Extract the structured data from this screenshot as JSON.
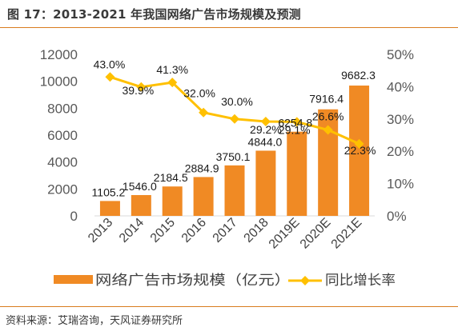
{
  "figure": {
    "title": "图 17：2013-2021 年我国网络广告市场规模及预测",
    "source": "资料来源：艾瑞咨询，天风证券研究所"
  },
  "chart_data": {
    "type": "bar",
    "categories": [
      "2013",
      "2014",
      "2015",
      "2016",
      "2017",
      "2018",
      "2019E",
      "2020E",
      "2021E"
    ],
    "series": [
      {
        "name": "网络广告市场规模（亿元）",
        "type": "bar",
        "axis": "left",
        "color": "#f08a24",
        "values": [
          1105.2,
          1546.0,
          2184.5,
          2884.9,
          3750.1,
          4844.0,
          6254.8,
          7916.4,
          9682.3
        ],
        "labels": [
          "1105.2",
          "1546.0",
          "2184.5",
          "2884.9",
          "3750.1",
          "4844.0",
          "6254.8",
          "7916.4",
          "9682.3"
        ]
      },
      {
        "name": "同比增长率",
        "type": "line",
        "axis": "right",
        "color": "#ffc000",
        "marker": "diamond",
        "values": [
          43.0,
          39.9,
          41.3,
          32.0,
          30.0,
          29.2,
          29.1,
          26.6,
          22.3
        ],
        "labels": [
          "43.0%",
          "39.9%",
          "41.3%",
          "32.0%",
          "30.0%",
          "29.2%",
          "29.1%",
          "26.6%",
          "22.3%"
        ]
      }
    ],
    "y_left": {
      "min": 0,
      "max": 12000,
      "ticks": [
        "0",
        "2000",
        "4000",
        "6000",
        "8000",
        "10000",
        "12000"
      ]
    },
    "y_right": {
      "min": 0,
      "max": 50,
      "ticks": [
        "0%",
        "10%",
        "20%",
        "30%",
        "40%",
        "50%"
      ]
    },
    "grid": false,
    "legend_position": "bottom"
  }
}
